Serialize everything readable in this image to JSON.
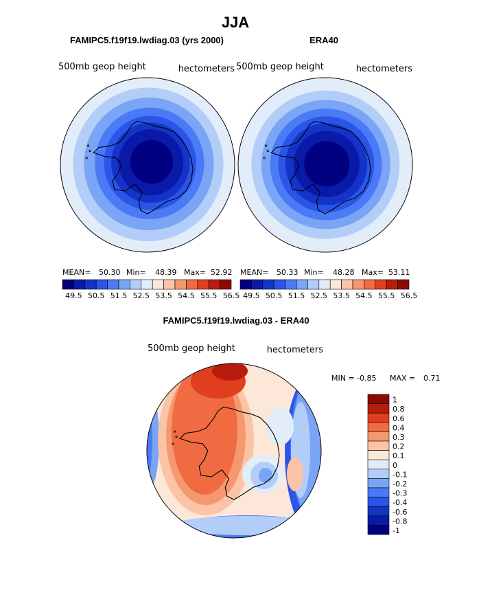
{
  "title": "JJA",
  "colors": {
    "abs_scale": [
      "#000080",
      "#0a1aa8",
      "#1434c8",
      "#2a55e8",
      "#4a7af5",
      "#7aa4f5",
      "#b2cdf7",
      "#e2edf9",
      "#fde7d8",
      "#fbc4a6",
      "#f6986f",
      "#f06a42",
      "#e03e1e",
      "#b81c0c",
      "#8c0a00"
    ],
    "diff_scale": [
      "#000080",
      "#0a1aa8",
      "#1434c8",
      "#2a55e8",
      "#4a7af5",
      "#7aa4f5",
      "#b2cdf7",
      "#e2edf9",
      "#fde7d8",
      "#fbc4a6",
      "#f6986f",
      "#f06a42",
      "#e03e1e",
      "#b81c0c",
      "#8c0a00"
    ],
    "coast": "#000000"
  },
  "chart_data": [
    {
      "type": "heatmap",
      "name": "model",
      "title": "FAMIPC5.f19f19.lwdiag.03 (yrs 2000)",
      "left_label": "500mb  geop  height",
      "right_label": "hectometers",
      "stats": {
        "mean_label": "MEAN=",
        "mean": "50.30",
        "min_label": "Min=",
        "min": "48.39",
        "max_label": "Max=",
        "max": "52.92"
      },
      "levels": [
        "49.5",
        "50.5",
        "51.5",
        "52.5",
        "53.5",
        "54.5",
        "55.5",
        "56.5"
      ],
      "rings": [
        {
          "r": 1.0,
          "value": 52.6
        },
        {
          "r": 0.88,
          "value": 52.2
        },
        {
          "r": 0.76,
          "value": 51.8
        },
        {
          "r": 0.64,
          "value": 51.3
        },
        {
          "r": 0.54,
          "value": 50.8
        },
        {
          "r": 0.46,
          "value": 50.3
        },
        {
          "r": 0.38,
          "value": 49.8
        },
        {
          "r": 0.25,
          "value": 49.3
        }
      ]
    },
    {
      "type": "heatmap",
      "name": "obs",
      "title": "ERA40",
      "left_label": "500mb  geop  height",
      "right_label": "hectometers",
      "stats": {
        "mean_label": "MEAN=",
        "mean": "50.33",
        "min_label": "Min=",
        "min": "48.28",
        "max_label": "Max=",
        "max": "53.11"
      },
      "levels": [
        "49.5",
        "50.5",
        "51.5",
        "52.5",
        "53.5",
        "54.5",
        "55.5",
        "56.5"
      ],
      "rings": [
        {
          "r": 1.0,
          "value": 52.7
        },
        {
          "r": 0.85,
          "value": 52.2
        },
        {
          "r": 0.74,
          "value": 51.8
        },
        {
          "r": 0.64,
          "value": 51.3
        },
        {
          "r": 0.55,
          "value": 50.8
        },
        {
          "r": 0.47,
          "value": 50.3
        },
        {
          "r": 0.38,
          "value": 49.8
        },
        {
          "r": 0.26,
          "value": 49.3
        }
      ]
    },
    {
      "type": "heatmap",
      "name": "diff",
      "title": "FAMIPC5.f19f19.lwdiag.03 - ERA40",
      "left_label": "500mb  geop  height",
      "right_label": "hectometers",
      "minmax": {
        "min_label": "MIN =",
        "min": "-0.85",
        "max_label": "MAX =",
        "max": "0.71"
      },
      "levels": [
        "1",
        "0.8",
        "0.6",
        "0.4",
        "0.3",
        "0.2",
        "0.1",
        "0",
        "-0.1",
        "-0.2",
        "-0.3",
        "-0.4",
        "-0.6",
        "-0.8",
        "-1"
      ]
    }
  ]
}
